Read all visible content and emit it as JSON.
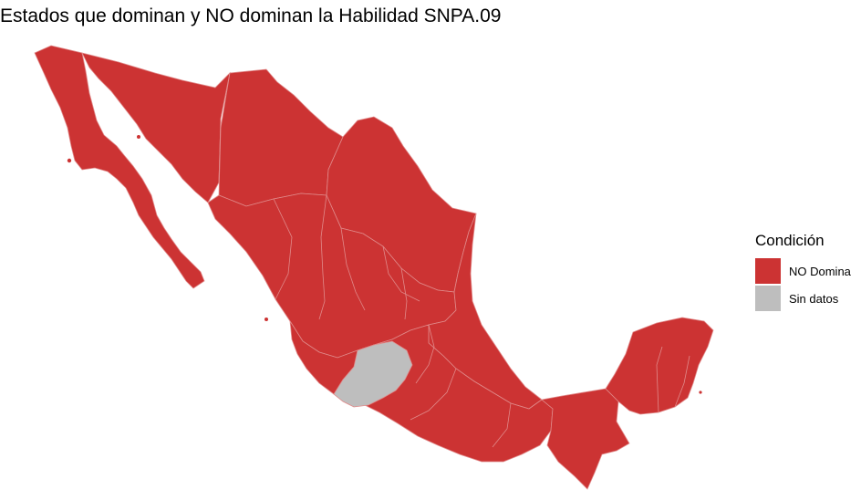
{
  "title": "Estados que dominan y NO dominan la Habilidad SNPA.09",
  "legend": {
    "title": "Condición",
    "items": [
      {
        "label": "NO Domina",
        "color": "#CC3333"
      },
      {
        "label": "Sin datos",
        "color": "#BEBEBE"
      }
    ]
  },
  "map": {
    "region": "Mexico",
    "fill_no_domina": "#CC3333",
    "fill_sin_datos": "#BEBEBE",
    "border_color": "#E08A8A"
  }
}
